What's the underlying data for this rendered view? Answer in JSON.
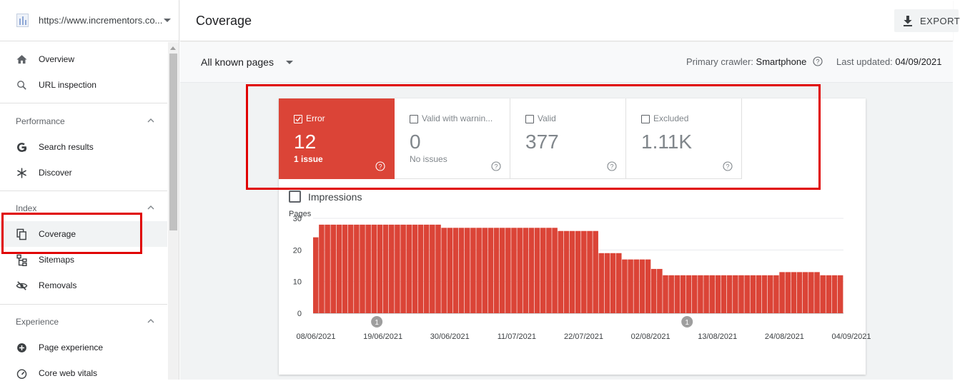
{
  "property": {
    "url": "https://www.incrementors.co..."
  },
  "sidebar": {
    "top_items": [
      {
        "label": "Overview",
        "icon": "home-icon"
      },
      {
        "label": "URL inspection",
        "icon": "search-icon"
      }
    ],
    "sections": [
      {
        "title": "Performance",
        "items": [
          {
            "label": "Search results",
            "icon": "google-g-icon"
          },
          {
            "label": "Discover",
            "icon": "asterisk-icon"
          }
        ]
      },
      {
        "title": "Index",
        "items": [
          {
            "label": "Coverage",
            "icon": "copy-pages-icon",
            "active": true
          },
          {
            "label": "Sitemaps",
            "icon": "sitemap-icon"
          },
          {
            "label": "Removals",
            "icon": "eye-off-icon"
          }
        ]
      },
      {
        "title": "Experience",
        "items": [
          {
            "label": "Page experience",
            "icon": "plus-circle-icon"
          },
          {
            "label": "Core web vitals",
            "icon": "gauge-icon"
          }
        ]
      }
    ]
  },
  "header": {
    "title": "Coverage",
    "export_label": "EXPORT"
  },
  "filters": {
    "page_filter": "All known pages",
    "crawler_label": "Primary crawler:",
    "crawler_value": "Smartphone",
    "updated_label": "Last updated:",
    "updated_value": "04/09/2021"
  },
  "tiles": [
    {
      "title": "Error",
      "value": "12",
      "sub": "1 issue",
      "checked": true
    },
    {
      "title": "Valid with warnin...",
      "value": "0",
      "sub": "No issues",
      "checked": false
    },
    {
      "title": "Valid",
      "value": "377",
      "sub": "",
      "checked": false
    },
    {
      "title": "Excluded",
      "value": "1.11K",
      "sub": "",
      "checked": false
    }
  ],
  "impressions_label": "Impressions",
  "colors": {
    "error": "#db4437",
    "annotation": "#e00000",
    "marker": "#9e9e9e"
  },
  "chart_data": {
    "type": "bar",
    "ylabel": "Pages",
    "ylim": [
      0,
      30
    ],
    "yticks": [
      0,
      10,
      20,
      30
    ],
    "xtick_labels": [
      "08/06/2021",
      "19/06/2021",
      "30/06/2021",
      "11/07/2021",
      "22/07/2021",
      "02/08/2021",
      "13/08/2021",
      "24/08/2021",
      "04/09/2021"
    ],
    "series": [
      {
        "values": [
          24,
          28,
          28,
          28,
          28,
          28,
          28,
          28,
          28,
          28,
          28,
          28,
          28,
          28,
          28,
          28,
          28,
          28,
          28,
          28,
          28,
          28,
          27,
          27,
          27,
          27,
          27,
          27,
          27,
          27,
          27,
          27,
          27,
          27,
          27,
          27,
          27,
          27,
          27,
          27,
          27,
          27,
          26,
          26,
          26,
          26,
          26,
          26,
          26,
          19,
          19,
          19,
          19,
          17,
          17,
          17,
          17,
          17,
          14,
          14,
          12,
          12,
          12,
          12,
          12,
          12,
          12,
          12,
          12,
          12,
          12,
          12,
          12,
          12,
          12,
          12,
          12,
          12,
          12,
          12,
          13,
          13,
          13,
          13,
          13,
          13,
          13,
          12,
          12,
          12,
          12
        ]
      }
    ],
    "annotation_markers": [
      {
        "x": "18/06/2021",
        "label": "1"
      },
      {
        "x": "08/08/2021",
        "label": "1"
      }
    ]
  }
}
